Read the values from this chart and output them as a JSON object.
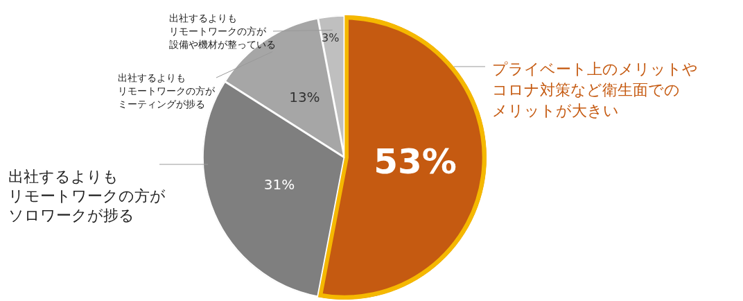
{
  "chart_data": {
    "type": "pie",
    "categories": [
      "プライベート上のメリットやコロナ対策など衛生面でのメリットが大きい",
      "出社するよりもリモートワークの方がソロワークが捗る",
      "出社するよりもリモートワークの方がミーティングが捗る",
      "出社するよりもリモートワークの方が設備や機材が整っている"
    ],
    "values": [
      53,
      31,
      13,
      3
    ],
    "colors": [
      "#c55a11",
      "#7f7f7f",
      "#a6a6a6",
      "#bfbfbf"
    ],
    "value_labels": [
      "53%",
      "31%",
      "13%",
      "3%"
    ],
    "legend": false
  }
}
